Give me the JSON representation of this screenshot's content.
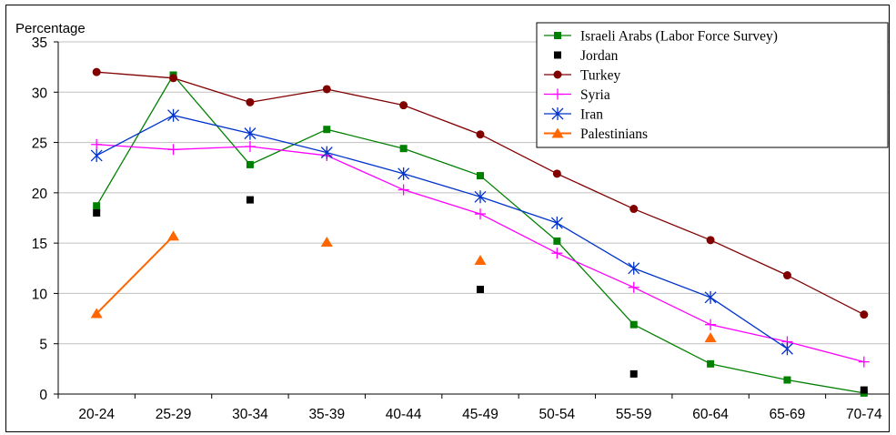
{
  "chart_data": {
    "type": "line",
    "title": "",
    "xlabel": "",
    "ylabel": "Percentage",
    "ylim": [
      0,
      35
    ],
    "yticks": [
      0,
      5,
      10,
      15,
      20,
      25,
      30,
      35
    ],
    "categories": [
      "20-24",
      "25-29",
      "30-34",
      "35-39",
      "40-44",
      "45-49",
      "50-54",
      "55-59",
      "60-64",
      "65-69",
      "70-74"
    ],
    "grid": true,
    "legend_position": "top-right",
    "series": [
      {
        "name": "Israeli Arabs (Labor Force Survey)",
        "color": "#008000",
        "marker": "square",
        "line": true,
        "values": [
          18.7,
          31.7,
          22.8,
          26.3,
          24.4,
          21.7,
          15.2,
          6.9,
          3.0,
          1.4,
          0.1
        ]
      },
      {
        "name": "Jordan",
        "color": "#000000",
        "marker": "square",
        "line": false,
        "values": [
          18.0,
          null,
          19.3,
          null,
          null,
          10.4,
          null,
          2.0,
          null,
          null,
          0.4
        ]
      },
      {
        "name": "Turkey",
        "color": "#800000",
        "marker": "circle",
        "line": true,
        "values": [
          32.0,
          31.4,
          29.0,
          30.3,
          28.7,
          25.8,
          21.9,
          18.4,
          15.3,
          11.8,
          7.9
        ]
      },
      {
        "name": "Syria",
        "color": "#ff00ff",
        "marker": "plus",
        "line": true,
        "values": [
          24.8,
          24.3,
          24.6,
          23.7,
          20.3,
          17.9,
          14.0,
          10.6,
          6.9,
          5.2,
          3.2
        ]
      },
      {
        "name": "Iran",
        "color": "#0033cc",
        "marker": "star",
        "line": true,
        "values": [
          23.7,
          27.7,
          25.9,
          24.0,
          21.9,
          19.6,
          17.0,
          12.5,
          9.6,
          4.5,
          null
        ]
      },
      {
        "name": "Palestinians",
        "color": "#ff6600",
        "marker": "triangle",
        "line": true,
        "values": [
          8.0,
          15.7,
          null,
          15.1,
          null,
          13.3,
          null,
          null,
          5.6,
          null,
          null
        ]
      }
    ]
  }
}
